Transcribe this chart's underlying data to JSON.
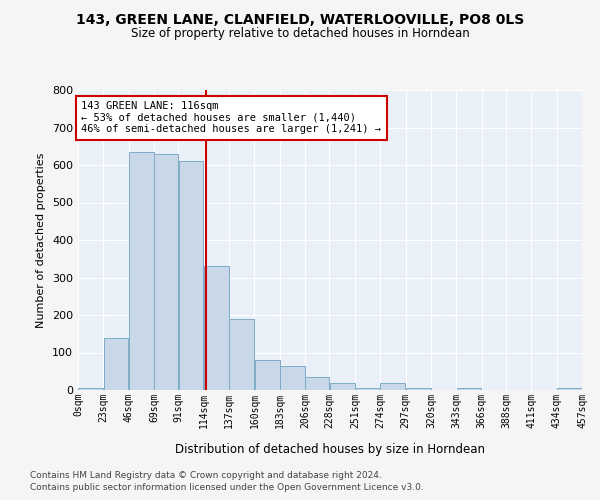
{
  "title1": "143, GREEN LANE, CLANFIELD, WATERLOOVILLE, PO8 0LS",
  "title2": "Size of property relative to detached houses in Horndean",
  "xlabel": "Distribution of detached houses by size in Horndean",
  "ylabel": "Number of detached properties",
  "bar_color": "#c8d8e8",
  "bar_edge_color": "#7facc8",
  "background_color": "#eaf0f8",
  "grid_color": "#ffffff",
  "fig_facecolor": "#f5f5f5",
  "vline_x": 116,
  "vline_color": "#cc0000",
  "annotation_text": "143 GREEN LANE: 116sqm\n← 53% of detached houses are smaller (1,440)\n46% of semi-detached houses are larger (1,241) →",
  "annotation_box_color": "#ffffff",
  "annotation_box_edge": "#cc0000",
  "bin_edges": [
    0,
    23,
    46,
    69,
    91,
    114,
    137,
    160,
    183,
    206,
    228,
    251,
    274,
    297,
    320,
    343,
    366,
    388,
    411,
    434,
    457
  ],
  "bin_values": [
    5,
    140,
    635,
    630,
    610,
    330,
    190,
    80,
    65,
    35,
    20,
    5,
    20,
    5,
    0,
    5,
    0,
    0,
    0,
    5
  ],
  "ylim": [
    0,
    800
  ],
  "yticks": [
    0,
    100,
    200,
    300,
    400,
    500,
    600,
    700,
    800
  ],
  "footer1": "Contains HM Land Registry data © Crown copyright and database right 2024.",
  "footer2": "Contains public sector information licensed under the Open Government Licence v3.0."
}
